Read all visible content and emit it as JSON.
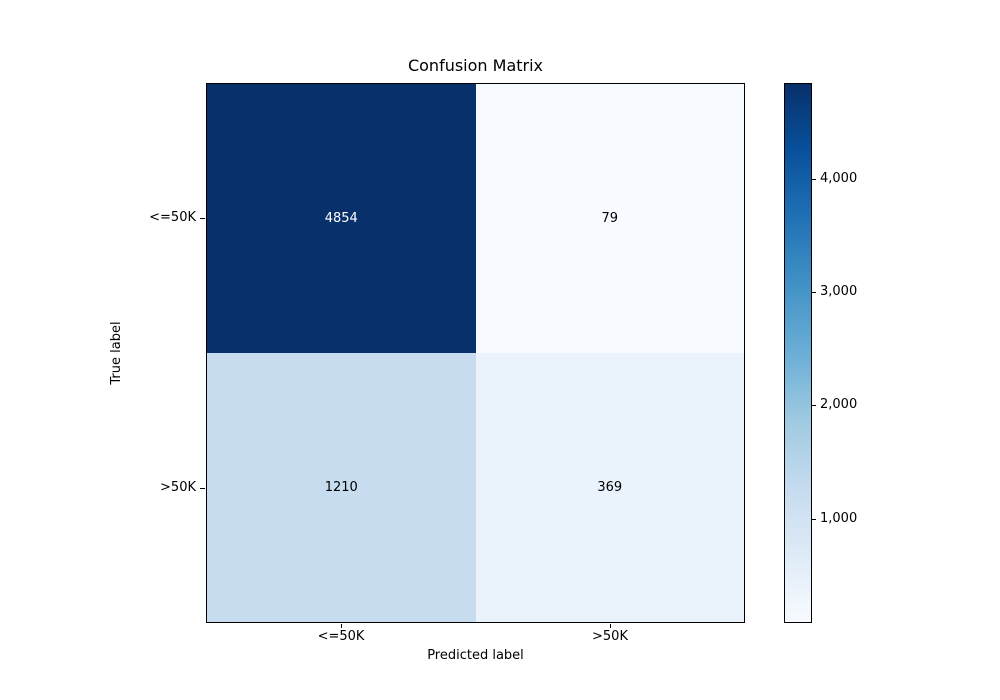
{
  "chart_data": {
    "type": "heatmap",
    "title": "Confusion Matrix",
    "xlabel": "Predicted label",
    "ylabel": "True label",
    "x_categories": [
      "<=50K",
      ">50K"
    ],
    "y_categories": [
      "<=50K",
      ">50K"
    ],
    "matrix": [
      [
        4854,
        79
      ],
      [
        1210,
        369
      ]
    ],
    "colormap": "Blues",
    "vmin": 79,
    "vmax": 4854,
    "grid": false,
    "colorbar": {
      "position": "right",
      "tick_labels": [
        "4,000",
        "3,000",
        "2,000",
        "1,000"
      ],
      "tick_values": [
        4000,
        3000,
        2000,
        1000
      ],
      "top_color": "#08306b",
      "bottom_color": "#f7fbff"
    }
  },
  "cells": [
    {
      "true": "<=50K",
      "pred": "<=50K",
      "value": "4854",
      "bg": "#08306b",
      "fg": "#ffffff"
    },
    {
      "true": "<=50K",
      "pred": ">50K",
      "value": "79",
      "bg": "#f7fbff",
      "fg": "#000000"
    },
    {
      "true": ">50K",
      "pred": "<=50K",
      "value": "1210",
      "bg": "#c8dcef",
      "fg": "#000000"
    },
    {
      "true": ">50K",
      "pred": ">50K",
      "value": "369",
      "bg": "#eaf2fb",
      "fg": "#000000"
    }
  ],
  "colors": {
    "background": "#ffffff",
    "axes_edge": "#000000",
    "text": "#000000"
  }
}
